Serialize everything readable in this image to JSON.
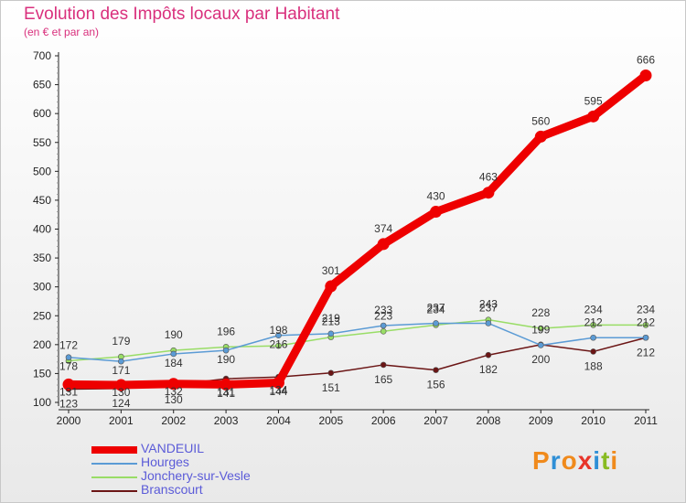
{
  "chart_data": {
    "type": "line",
    "title": "Evolution des Impôts locaux par Habitant",
    "subtitle": "(en € et par an)",
    "xlabel": "",
    "ylabel": "",
    "categories": [
      "2000",
      "2001",
      "2002",
      "2003",
      "2004",
      "2005",
      "2006",
      "2007",
      "2008",
      "2009",
      "2010",
      "2011"
    ],
    "ylim": [
      100,
      700
    ],
    "yticks": [
      100,
      150,
      200,
      250,
      300,
      350,
      400,
      450,
      500,
      550,
      600,
      650,
      700
    ],
    "grid": false,
    "legend": "bottom-left",
    "series": [
      {
        "name": "VANDEUIL",
        "color": "#ee0000",
        "values": [
          131,
          130,
          132,
          131,
          134,
          301,
          374,
          430,
          463,
          560,
          595,
          666
        ]
      },
      {
        "name": "Hourges",
        "color": "#5b9bd5",
        "values": [
          178,
          171,
          184,
          190,
          216,
          219,
          233,
          237,
          237,
          199,
          212,
          212
        ]
      },
      {
        "name": "Jonchery-sur-Vesle",
        "color": "#99dd66",
        "values": [
          172,
          179,
          190,
          196,
          198,
          213,
          223,
          234,
          243,
          228,
          234,
          234
        ]
      },
      {
        "name": "Branscourt",
        "color": "#6b1515",
        "values": [
          123,
          124,
          130,
          141,
          144,
          151,
          165,
          156,
          182,
          200,
          188,
          212
        ]
      }
    ]
  },
  "brand": {
    "logo_text": "Proxiti",
    "logo_colors": [
      "#f08a1c",
      "#2f8fd6",
      "#f08a1c",
      "#e8352a",
      "#2f8fd6",
      "#88bb22",
      "#f08a1c"
    ]
  }
}
